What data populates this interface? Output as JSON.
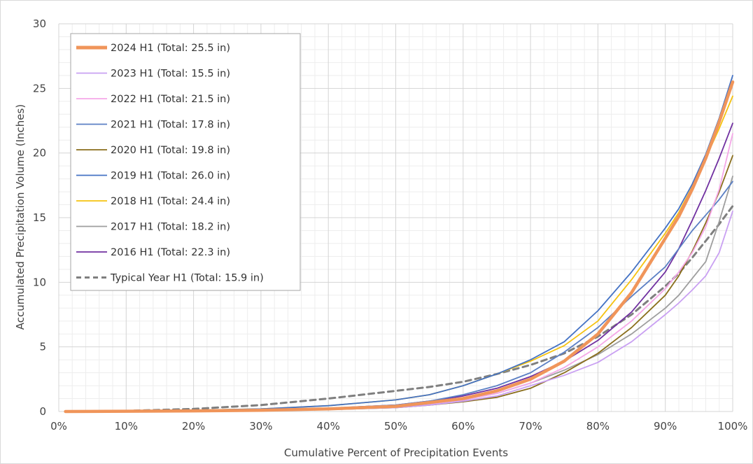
{
  "chart_data": {
    "type": "line",
    "title": "",
    "xlabel": "Cumulative Percent of Precipitation Events",
    "ylabel": "Accumulated Precipitation Volume (Inches)",
    "xlim": [
      0,
      100
    ],
    "ylim": [
      0,
      30
    ],
    "x_ticks": [
      "0%",
      "10%",
      "20%",
      "30%",
      "40%",
      "50%",
      "60%",
      "70%",
      "80%",
      "90%",
      "100%"
    ],
    "y_ticks": [
      "0",
      "5",
      "10",
      "15",
      "20",
      "25",
      "30"
    ],
    "grid": "major and minor",
    "legend_position": "top-left",
    "series": [
      {
        "name": "2024 H1 (Total: 25.5 in)",
        "color": "#f0955a",
        "dash": "solid",
        "emphasis": true,
        "x": [
          1,
          10,
          20,
          30,
          40,
          50,
          55,
          60,
          65,
          70,
          75,
          80,
          85,
          90,
          92,
          94,
          96,
          98,
          100
        ],
        "y": [
          0,
          0.02,
          0.05,
          0.1,
          0.2,
          0.4,
          0.7,
          1.0,
          1.6,
          2.5,
          3.9,
          6.0,
          9.2,
          13.4,
          15.1,
          17.2,
          19.6,
          22.4,
          25.5
        ]
      },
      {
        "name": "2023 H1 (Total: 15.5 in)",
        "color": "#c9a0f2",
        "dash": "solid",
        "x": [
          1,
          10,
          20,
          30,
          40,
          50,
          55,
          60,
          65,
          70,
          75,
          80,
          85,
          90,
          92,
          94,
          96,
          98,
          100
        ],
        "y": [
          0,
          0.02,
          0.04,
          0.08,
          0.15,
          0.3,
          0.5,
          0.8,
          1.2,
          2.0,
          2.8,
          3.8,
          5.4,
          7.5,
          8.4,
          9.4,
          10.5,
          12.3,
          15.5
        ]
      },
      {
        "name": "2022 H1 (Total: 21.5 in)",
        "color": "#f5a8e8",
        "dash": "solid",
        "x": [
          1,
          10,
          20,
          30,
          40,
          50,
          55,
          60,
          65,
          70,
          75,
          80,
          85,
          90,
          92,
          94,
          96,
          98,
          100
        ],
        "y": [
          0,
          0.02,
          0.05,
          0.1,
          0.2,
          0.4,
          0.6,
          0.9,
          1.4,
          2.2,
          3.4,
          5.0,
          7.0,
          9.5,
          10.8,
          12.3,
          14.3,
          17.2,
          21.5
        ]
      },
      {
        "name": "2021 H1 (Total: 17.8 in)",
        "color": "#5b7fc4",
        "dash": "solid",
        "x": [
          1,
          10,
          20,
          30,
          40,
          50,
          55,
          60,
          65,
          70,
          75,
          80,
          85,
          90,
          92,
          94,
          96,
          98,
          100
        ],
        "y": [
          0,
          0.03,
          0.06,
          0.12,
          0.25,
          0.5,
          0.8,
          1.3,
          2.0,
          3.0,
          4.6,
          6.5,
          8.9,
          11.2,
          12.6,
          14.0,
          15.2,
          16.4,
          17.8
        ]
      },
      {
        "name": "2020 H1 (Total: 19.8 in)",
        "color": "#8a6e1c",
        "dash": "solid",
        "x": [
          1,
          10,
          20,
          30,
          40,
          50,
          55,
          60,
          65,
          70,
          75,
          80,
          85,
          90,
          92,
          94,
          96,
          98,
          100
        ],
        "y": [
          0,
          0.02,
          0.04,
          0.08,
          0.15,
          0.3,
          0.5,
          0.75,
          1.1,
          1.8,
          3.0,
          4.5,
          6.5,
          9.0,
          10.5,
          12.4,
          14.6,
          17.0,
          19.8
        ]
      },
      {
        "name": "2019 H1 (Total: 26.0 in)",
        "color": "#4472c4",
        "dash": "solid",
        "x": [
          1,
          10,
          20,
          30,
          40,
          50,
          55,
          60,
          65,
          70,
          75,
          80,
          85,
          90,
          92,
          94,
          96,
          98,
          100
        ],
        "y": [
          0,
          0.04,
          0.1,
          0.2,
          0.45,
          0.9,
          1.3,
          2.0,
          2.9,
          4.0,
          5.4,
          7.8,
          10.8,
          14.2,
          15.7,
          17.6,
          19.9,
          22.7,
          26.0
        ]
      },
      {
        "name": "2018 H1 (Total: 24.4 in)",
        "color": "#f5c20f",
        "dash": "solid",
        "x": [
          1,
          10,
          20,
          30,
          40,
          50,
          55,
          60,
          65,
          70,
          75,
          80,
          85,
          90,
          92,
          94,
          96,
          98,
          100
        ],
        "y": [
          0,
          0.04,
          0.1,
          0.2,
          0.45,
          0.9,
          1.3,
          2.0,
          2.9,
          3.9,
          5.1,
          7.0,
          10.2,
          13.8,
          15.4,
          17.4,
          19.6,
          21.9,
          24.4
        ]
      },
      {
        "name": "2017 H1 (Total: 18.2 in)",
        "color": "#9e9e9e",
        "dash": "solid",
        "x": [
          1,
          10,
          20,
          30,
          40,
          50,
          55,
          60,
          65,
          70,
          75,
          80,
          85,
          90,
          92,
          94,
          96,
          98,
          100
        ],
        "y": [
          0,
          0.02,
          0.05,
          0.1,
          0.2,
          0.4,
          0.6,
          0.9,
          1.4,
          2.2,
          3.2,
          4.4,
          6.0,
          8.0,
          9.0,
          10.3,
          11.6,
          14.7,
          18.2
        ]
      },
      {
        "name": "2016 H1 (Total: 22.3 in)",
        "color": "#7030a0",
        "dash": "solid",
        "x": [
          1,
          10,
          20,
          30,
          40,
          50,
          55,
          60,
          65,
          70,
          75,
          80,
          85,
          90,
          92,
          94,
          96,
          98,
          100
        ],
        "y": [
          0,
          0.03,
          0.06,
          0.12,
          0.25,
          0.5,
          0.8,
          1.2,
          1.8,
          2.7,
          3.9,
          5.5,
          7.7,
          10.8,
          12.6,
          14.8,
          17.1,
          19.6,
          22.3
        ]
      },
      {
        "name": "Typical Year H1 (Total: 15.9 in)",
        "color": "#7f7f7f",
        "dash": "dashed",
        "x": [
          1,
          10,
          20,
          30,
          40,
          50,
          55,
          60,
          65,
          70,
          75,
          80,
          85,
          90,
          92,
          94,
          96,
          98,
          100
        ],
        "y": [
          0,
          0.05,
          0.2,
          0.5,
          1.0,
          1.6,
          1.9,
          2.3,
          2.9,
          3.6,
          4.5,
          5.8,
          7.5,
          9.7,
          10.7,
          11.9,
          13.2,
          14.5,
          15.9
        ]
      }
    ]
  }
}
